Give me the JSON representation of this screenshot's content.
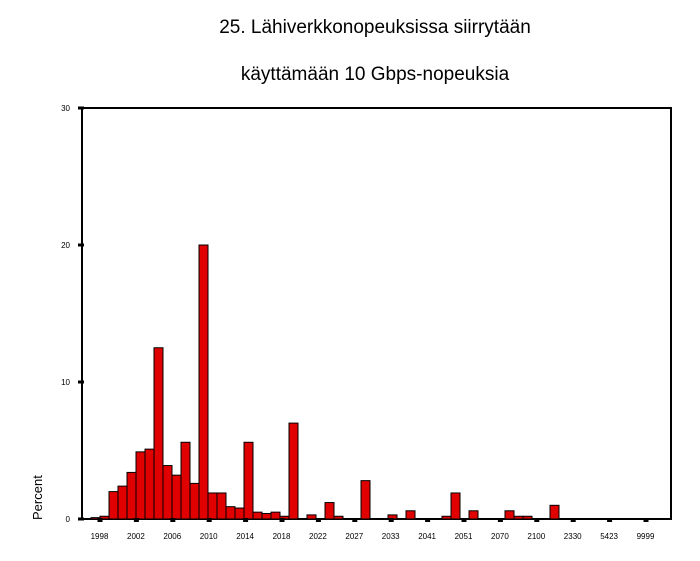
{
  "chart_data": {
    "type": "bar",
    "title_lines": [
      "25. Lähiverkkonopeuksissa siirrytään",
      "käyttämään 10 Gbps-nopeuksia"
    ],
    "xlabel": "",
    "ylabel": "Percent",
    "ylim": [
      0,
      30
    ],
    "yticks": [
      "0",
      "10",
      "20",
      "30"
    ],
    "xtick_labels": [
      "1998",
      "2002",
      "2006",
      "2010",
      "2014",
      "2018",
      "2022",
      "2027",
      "2033",
      "2041",
      "2051",
      "2070",
      "2100",
      "2330",
      "5423",
      "9999"
    ],
    "bar_color": "#e00000",
    "grid": false,
    "values": [
      0.1,
      0.2,
      2.0,
      2.4,
      3.4,
      4.9,
      5.1,
      12.5,
      3.9,
      3.2,
      5.6,
      2.6,
      20.0,
      1.9,
      1.9,
      0.9,
      0.8,
      5.6,
      0.5,
      0.4,
      0.5,
      0.2,
      7.0,
      0,
      0.3,
      0,
      1.2,
      0.2,
      0,
      0,
      2.8,
      0,
      0,
      0.3,
      0,
      0.6,
      0,
      0,
      0,
      0.2,
      1.9,
      0,
      0.6,
      0,
      0,
      0,
      0.6,
      0.2,
      0.2,
      0,
      0,
      1.0,
      0,
      0,
      0,
      0,
      0,
      0,
      0,
      0,
      0,
      0,
      0,
      0,
      0
    ]
  }
}
